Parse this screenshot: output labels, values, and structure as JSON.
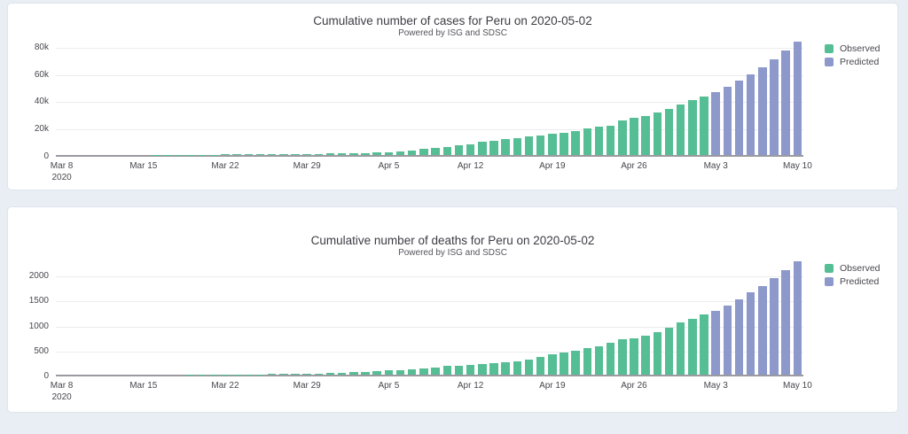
{
  "page": {
    "background_color": "#e9edf4",
    "card_color": "#ffffff"
  },
  "colors": {
    "observed": "#56be94",
    "predicted": "#8c99ca",
    "axis_line": "#9a9aa0",
    "gridline": "#ececf1"
  },
  "chart_data": [
    {
      "type": "bar",
      "title": "Cumulative number of cases for Peru on 2020-05-02",
      "subtitle": "Powered by ISG and SDSC",
      "x_start_date": "Mar 8 2020",
      "x_end_date": "May 10 2020",
      "n_bars": 64,
      "ylim": [
        0,
        85000
      ],
      "grid": true,
      "legend_position": "right",
      "y_ticks": [
        {
          "value": 0,
          "label": "0"
        },
        {
          "value": 20000,
          "label": "20k"
        },
        {
          "value": 40000,
          "label": "40k"
        },
        {
          "value": 60000,
          "label": "60k"
        },
        {
          "value": 80000,
          "label": "80k"
        }
      ],
      "x_ticks": [
        {
          "index": 0,
          "label": "Mar 8",
          "label2": "2020"
        },
        {
          "index": 7,
          "label": "Mar 15"
        },
        {
          "index": 14,
          "label": "Mar 22"
        },
        {
          "index": 21,
          "label": "Mar 29"
        },
        {
          "index": 28,
          "label": "Apr 5"
        },
        {
          "index": 35,
          "label": "Apr 12"
        },
        {
          "index": 42,
          "label": "Apr 19"
        },
        {
          "index": 49,
          "label": "Apr 26"
        },
        {
          "index": 56,
          "label": "May 3"
        },
        {
          "index": 63,
          "label": "May 10"
        }
      ],
      "series": [
        {
          "name": "Observed",
          "color": "#56be94",
          "start_index": 0,
          "values": [
            6,
            9,
            11,
            15,
            22,
            38,
            38,
            43,
            86,
            117,
            145,
            234,
            234,
            318,
            363,
            395,
            416,
            480,
            580,
            635,
            671,
            852,
            950,
            1065,
            1323,
            1414,
            1595,
            1746,
            2281,
            2561,
            2954,
            4342,
            5256,
            5897,
            6848,
            7519,
            9784,
            10303,
            11475,
            12491,
            13489,
            14420,
            15628,
            16325,
            17837,
            19250,
            20914,
            21648,
            25331,
            27517,
            28699,
            31190,
            33931,
            36976,
            40459,
            42534
          ]
        },
        {
          "name": "Predicted",
          "color": "#8c99ca",
          "start_index": 56,
          "values": [
            46000,
            50100,
            54500,
            59300,
            64500,
            70200,
            76400,
            83100
          ]
        }
      ]
    },
    {
      "type": "bar",
      "title": "Cumulative number of deaths for Peru on 2020-05-02",
      "subtitle": "Powered by ISG and SDSC",
      "x_start_date": "Mar 8 2020",
      "x_end_date": "May 10 2020",
      "n_bars": 64,
      "ylim": [
        0,
        2320
      ],
      "grid": true,
      "legend_position": "right",
      "y_ticks": [
        {
          "value": 0,
          "label": "0"
        },
        {
          "value": 500,
          "label": "500"
        },
        {
          "value": 1000,
          "label": "1000"
        },
        {
          "value": 1500,
          "label": "1500"
        },
        {
          "value": 2000,
          "label": "2000"
        }
      ],
      "x_ticks": [
        {
          "index": 0,
          "label": "Mar 8",
          "label2": "2020"
        },
        {
          "index": 7,
          "label": "Mar 15"
        },
        {
          "index": 14,
          "label": "Mar 22"
        },
        {
          "index": 21,
          "label": "Mar 29"
        },
        {
          "index": 28,
          "label": "Apr 5"
        },
        {
          "index": 35,
          "label": "Apr 12"
        },
        {
          "index": 42,
          "label": "Apr 19"
        },
        {
          "index": 49,
          "label": "Apr 26"
        },
        {
          "index": 56,
          "label": "May 3"
        },
        {
          "index": 63,
          "label": "May 10"
        }
      ],
      "series": [
        {
          "name": "Observed",
          "color": "#56be94",
          "start_index": 0,
          "values": [
            0,
            0,
            0,
            0,
            0,
            0,
            0,
            0,
            0,
            0,
            0,
            3,
            3,
            4,
            5,
            5,
            7,
            9,
            11,
            11,
            16,
            18,
            24,
            30,
            38,
            47,
            61,
            73,
            83,
            93,
            107,
            121,
            138,
            169,
            181,
            193,
            216,
            230,
            254,
            274,
            300,
            348,
            400,
            445,
            484,
            530,
            572,
            634,
            700,
            728,
            782,
            854,
            943,
            1051,
            1124,
            1200
          ]
        },
        {
          "name": "Predicted",
          "color": "#8c99ca",
          "start_index": 56,
          "values": [
            1280,
            1390,
            1510,
            1640,
            1780,
            1930,
            2090,
            2260
          ]
        }
      ]
    }
  ]
}
